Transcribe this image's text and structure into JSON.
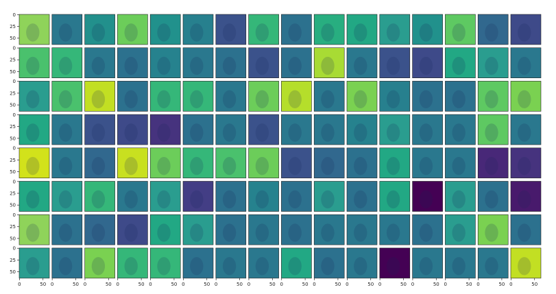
{
  "grid": {
    "rows": 8,
    "cols": 16,
    "extent": [
      0,
      64
    ],
    "yticks": [
      0,
      25,
      50
    ],
    "xticks": [
      0,
      50
    ],
    "panel_colors": [
      [
        "#8fd35a",
        "#2a788e",
        "#22908c",
        "#6ccd5a",
        "#21918c",
        "#27808e",
        "#3b528b",
        "#35b779",
        "#2c718e",
        "#28ae80",
        "#22a884",
        "#2a9d8f",
        "#21918c",
        "#5ec962",
        "#31688e",
        "#3e4a89"
      ],
      [
        "#4ac16d",
        "#35b779",
        "#2a788e",
        "#2c718e",
        "#26828e",
        "#2a788e",
        "#2c718e",
        "#3b528b",
        "#2c718e",
        "#a8db34",
        "#2a788e",
        "#3b528b",
        "#3e4a89",
        "#22a884",
        "#2a9d8f",
        "#2a788e"
      ],
      [
        "#2a9d8f",
        "#4ac16d",
        "#c2df23",
        "#2c718e",
        "#35b779",
        "#35b779",
        "#2a788e",
        "#6ccd5a",
        "#b5de2b",
        "#2a788e",
        "#7ad151",
        "#27808e",
        "#2c718e",
        "#2c718e",
        "#5ec962",
        "#7ad151"
      ],
      [
        "#22a884",
        "#2a788e",
        "#3b528b",
        "#3e4a89",
        "#46337e",
        "#2c718e",
        "#2a788e",
        "#3b528b",
        "#2a788e",
        "#2a788e",
        "#26828e",
        "#2a9d8f",
        "#2a788e",
        "#2a788e",
        "#5ec962",
        "#2a788e"
      ],
      [
        "#d2e21b",
        "#2a788e",
        "#31688e",
        "#c8e020",
        "#6ccd5a",
        "#35b779",
        "#4ac16d",
        "#6ccd5a",
        "#3b528b",
        "#31688e",
        "#2c718e",
        "#22a884",
        "#2a788e",
        "#2a788e",
        "#482878",
        "#46337e"
      ],
      [
        "#22a884",
        "#2a9d8f",
        "#35b779",
        "#2a788e",
        "#2a9d8f",
        "#433e85",
        "#2c718e",
        "#26828e",
        "#2c718e",
        "#2a9d8f",
        "#2c718e",
        "#22a884",
        "#440154",
        "#2a9d8f",
        "#2c718e",
        "#481a6c"
      ],
      [
        "#8fd35a",
        "#2c718e",
        "#31688e",
        "#3e4a89",
        "#22a884",
        "#2a9d8f",
        "#2c718e",
        "#2a788e",
        "#2c718e",
        "#2a788e",
        "#2a788e",
        "#2a788e",
        "#2c718e",
        "#2a9d8f",
        "#7ad151",
        "#2c718e"
      ],
      [
        "#2a9d8f",
        "#2c718e",
        "#7ad151",
        "#35b779",
        "#35b779",
        "#2c718e",
        "#2a788e",
        "#2a788e",
        "#22a884",
        "#2c718e",
        "#2a788e",
        "#440154",
        "#2a788e",
        "#2a788e",
        "#2a788e",
        "#c2df23"
      ]
    ]
  }
}
